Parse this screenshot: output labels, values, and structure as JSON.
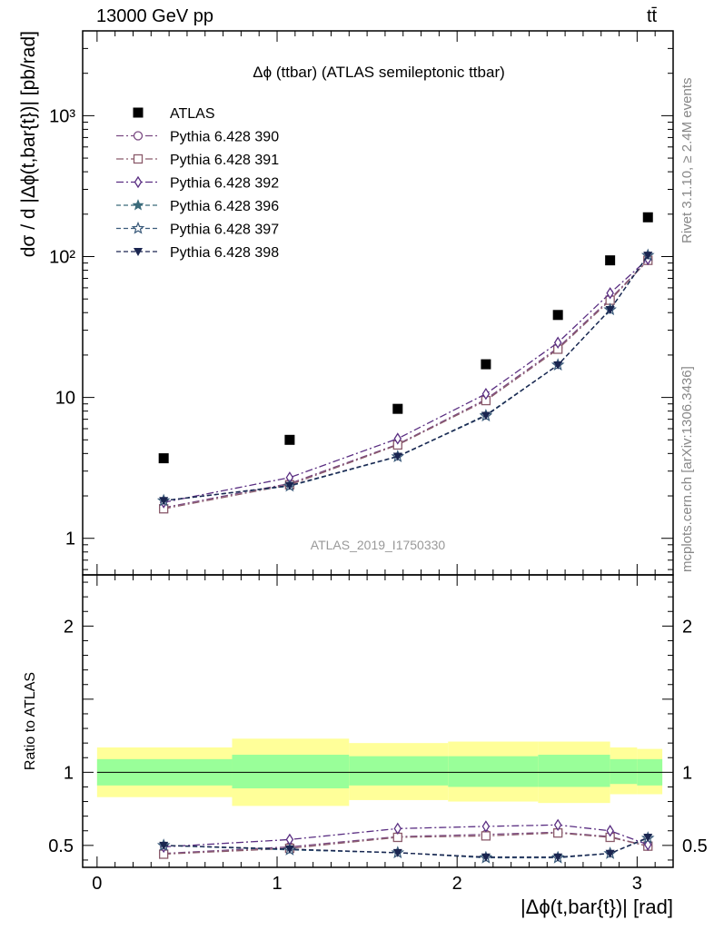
{
  "header": {
    "energy_label": "13000 GeV pp",
    "process_label": "tt̄"
  },
  "side_labels": {
    "rivet": "Rivet 3.1.10, ≥ 2.4M events",
    "mcplots": "mcplots.cern.ch [arXiv:1306.3436]"
  },
  "chart_data": [
    {
      "type": "scatter",
      "title": "Δϕ (ttbar) (ATLAS semileptonic ttbar)",
      "watermark": "ATLAS_2019_I1750330",
      "xlabel": "|Δϕ(t,bar{t})| [rad]",
      "ylabel": "dσ / d |Δϕ(t,bar{t})| [pb/rad]",
      "yscale": "log",
      "xlim": [
        -0.08,
        3.2
      ],
      "ylim": [
        0.55,
        4000
      ],
      "y_ticks": [
        {
          "v": 1,
          "label": "1"
        },
        {
          "v": 10,
          "label": "10"
        },
        {
          "v": 100,
          "label": "10²"
        },
        {
          "v": 1000,
          "label": "10³"
        }
      ],
      "legend_position": "top-left",
      "x": [
        0.37,
        1.07,
        1.67,
        2.16,
        2.56,
        2.85,
        3.06
      ],
      "series": [
        {
          "name": "ATLAS",
          "color": "#000000",
          "marker": "square-filled",
          "values": [
            3.7,
            5.0,
            8.3,
            17.2,
            38.5,
            94.0,
            190.0
          ]
        },
        {
          "name": "Pythia 6.428 390",
          "color": "#7a4a82",
          "marker": "circle-open",
          "dash": "8,3,2,3",
          "values": [
            1.65,
            2.45,
            4.65,
            9.7,
            22.5,
            50.0,
            94.0
          ]
        },
        {
          "name": "Pythia 6.428 391",
          "color": "#8a5a6a",
          "marker": "square-open",
          "dash": "8,3,2,3",
          "values": [
            1.62,
            2.4,
            4.6,
            9.5,
            22.0,
            49.0,
            94.0
          ]
        },
        {
          "name": "Pythia 6.428 392",
          "color": "#5a2e82",
          "marker": "diamond-open",
          "dash": "8,3,2,3",
          "values": [
            1.8,
            2.7,
            5.1,
            10.6,
            24.5,
            55.0,
            96.0
          ]
        },
        {
          "name": "Pythia 6.428 396",
          "color": "#3a6a7a",
          "marker": "star-filled",
          "dash": "5,3",
          "values": [
            1.85,
            2.35,
            3.8,
            7.5,
            17.0,
            42.0,
            102.0
          ]
        },
        {
          "name": "Pythia 6.428 397",
          "color": "#3a5a7a",
          "marker": "star-open",
          "dash": "5,3",
          "values": [
            1.85,
            2.35,
            3.8,
            7.4,
            17.0,
            42.0,
            102.0
          ]
        },
        {
          "name": "Pythia 6.428 398",
          "color": "#1a2550",
          "marker": "triangle-down-filled",
          "dash": "5,3",
          "values": [
            1.85,
            2.37,
            3.82,
            7.45,
            17.0,
            42.0,
            102.0
          ]
        }
      ]
    },
    {
      "type": "scatter",
      "ylabel": "Ratio to ATLAS",
      "xlabel": "|Δϕ(t,bar{t})| [rad]",
      "xlim": [
        -0.08,
        3.2
      ],
      "ylim": [
        0.35,
        2.35
      ],
      "x_ticks": [
        0,
        1,
        2,
        3
      ],
      "y_ticks": [
        0.5,
        1,
        2
      ],
      "bands": {
        "edges": [
          0.0,
          0.75,
          1.4,
          1.95,
          2.45,
          2.85,
          3.0,
          3.14
        ],
        "inner": [
          [
            0.91,
            1.09
          ],
          [
            0.89,
            1.12
          ],
          [
            0.91,
            1.11
          ],
          [
            0.9,
            1.11
          ],
          [
            0.9,
            1.12
          ],
          [
            0.92,
            1.09
          ],
          [
            0.91,
            1.09
          ]
        ],
        "outer": [
          [
            0.83,
            1.17
          ],
          [
            0.77,
            1.23
          ],
          [
            0.81,
            1.2
          ],
          [
            0.8,
            1.21
          ],
          [
            0.79,
            1.21
          ],
          [
            0.85,
            1.17
          ],
          [
            0.85,
            1.16
          ]
        ],
        "inner_color": "#99ff99",
        "outer_color": "#ffff99"
      },
      "x": [
        0.37,
        1.07,
        1.67,
        2.16,
        2.56,
        2.85,
        3.06
      ],
      "series": [
        {
          "name": "Pythia 6.428 390",
          "values": [
            0.445,
            0.49,
            0.56,
            0.575,
            0.59,
            0.56,
            0.495
          ]
        },
        {
          "name": "Pythia 6.428 391",
          "values": [
            0.44,
            0.48,
            0.555,
            0.565,
            0.585,
            0.555,
            0.495
          ]
        },
        {
          "name": "Pythia 6.428 392",
          "values": [
            0.49,
            0.54,
            0.615,
            0.63,
            0.64,
            0.6,
            0.505
          ]
        },
        {
          "name": "Pythia 6.428 396",
          "values": [
            0.5,
            0.47,
            0.45,
            0.42,
            0.42,
            0.445,
            0.55
          ]
        },
        {
          "name": "Pythia 6.428 397",
          "values": [
            0.5,
            0.47,
            0.45,
            0.415,
            0.415,
            0.445,
            0.55
          ]
        },
        {
          "name": "Pythia 6.428 398",
          "values": [
            0.5,
            0.475,
            0.45,
            0.42,
            0.42,
            0.445,
            0.555
          ]
        }
      ]
    }
  ]
}
